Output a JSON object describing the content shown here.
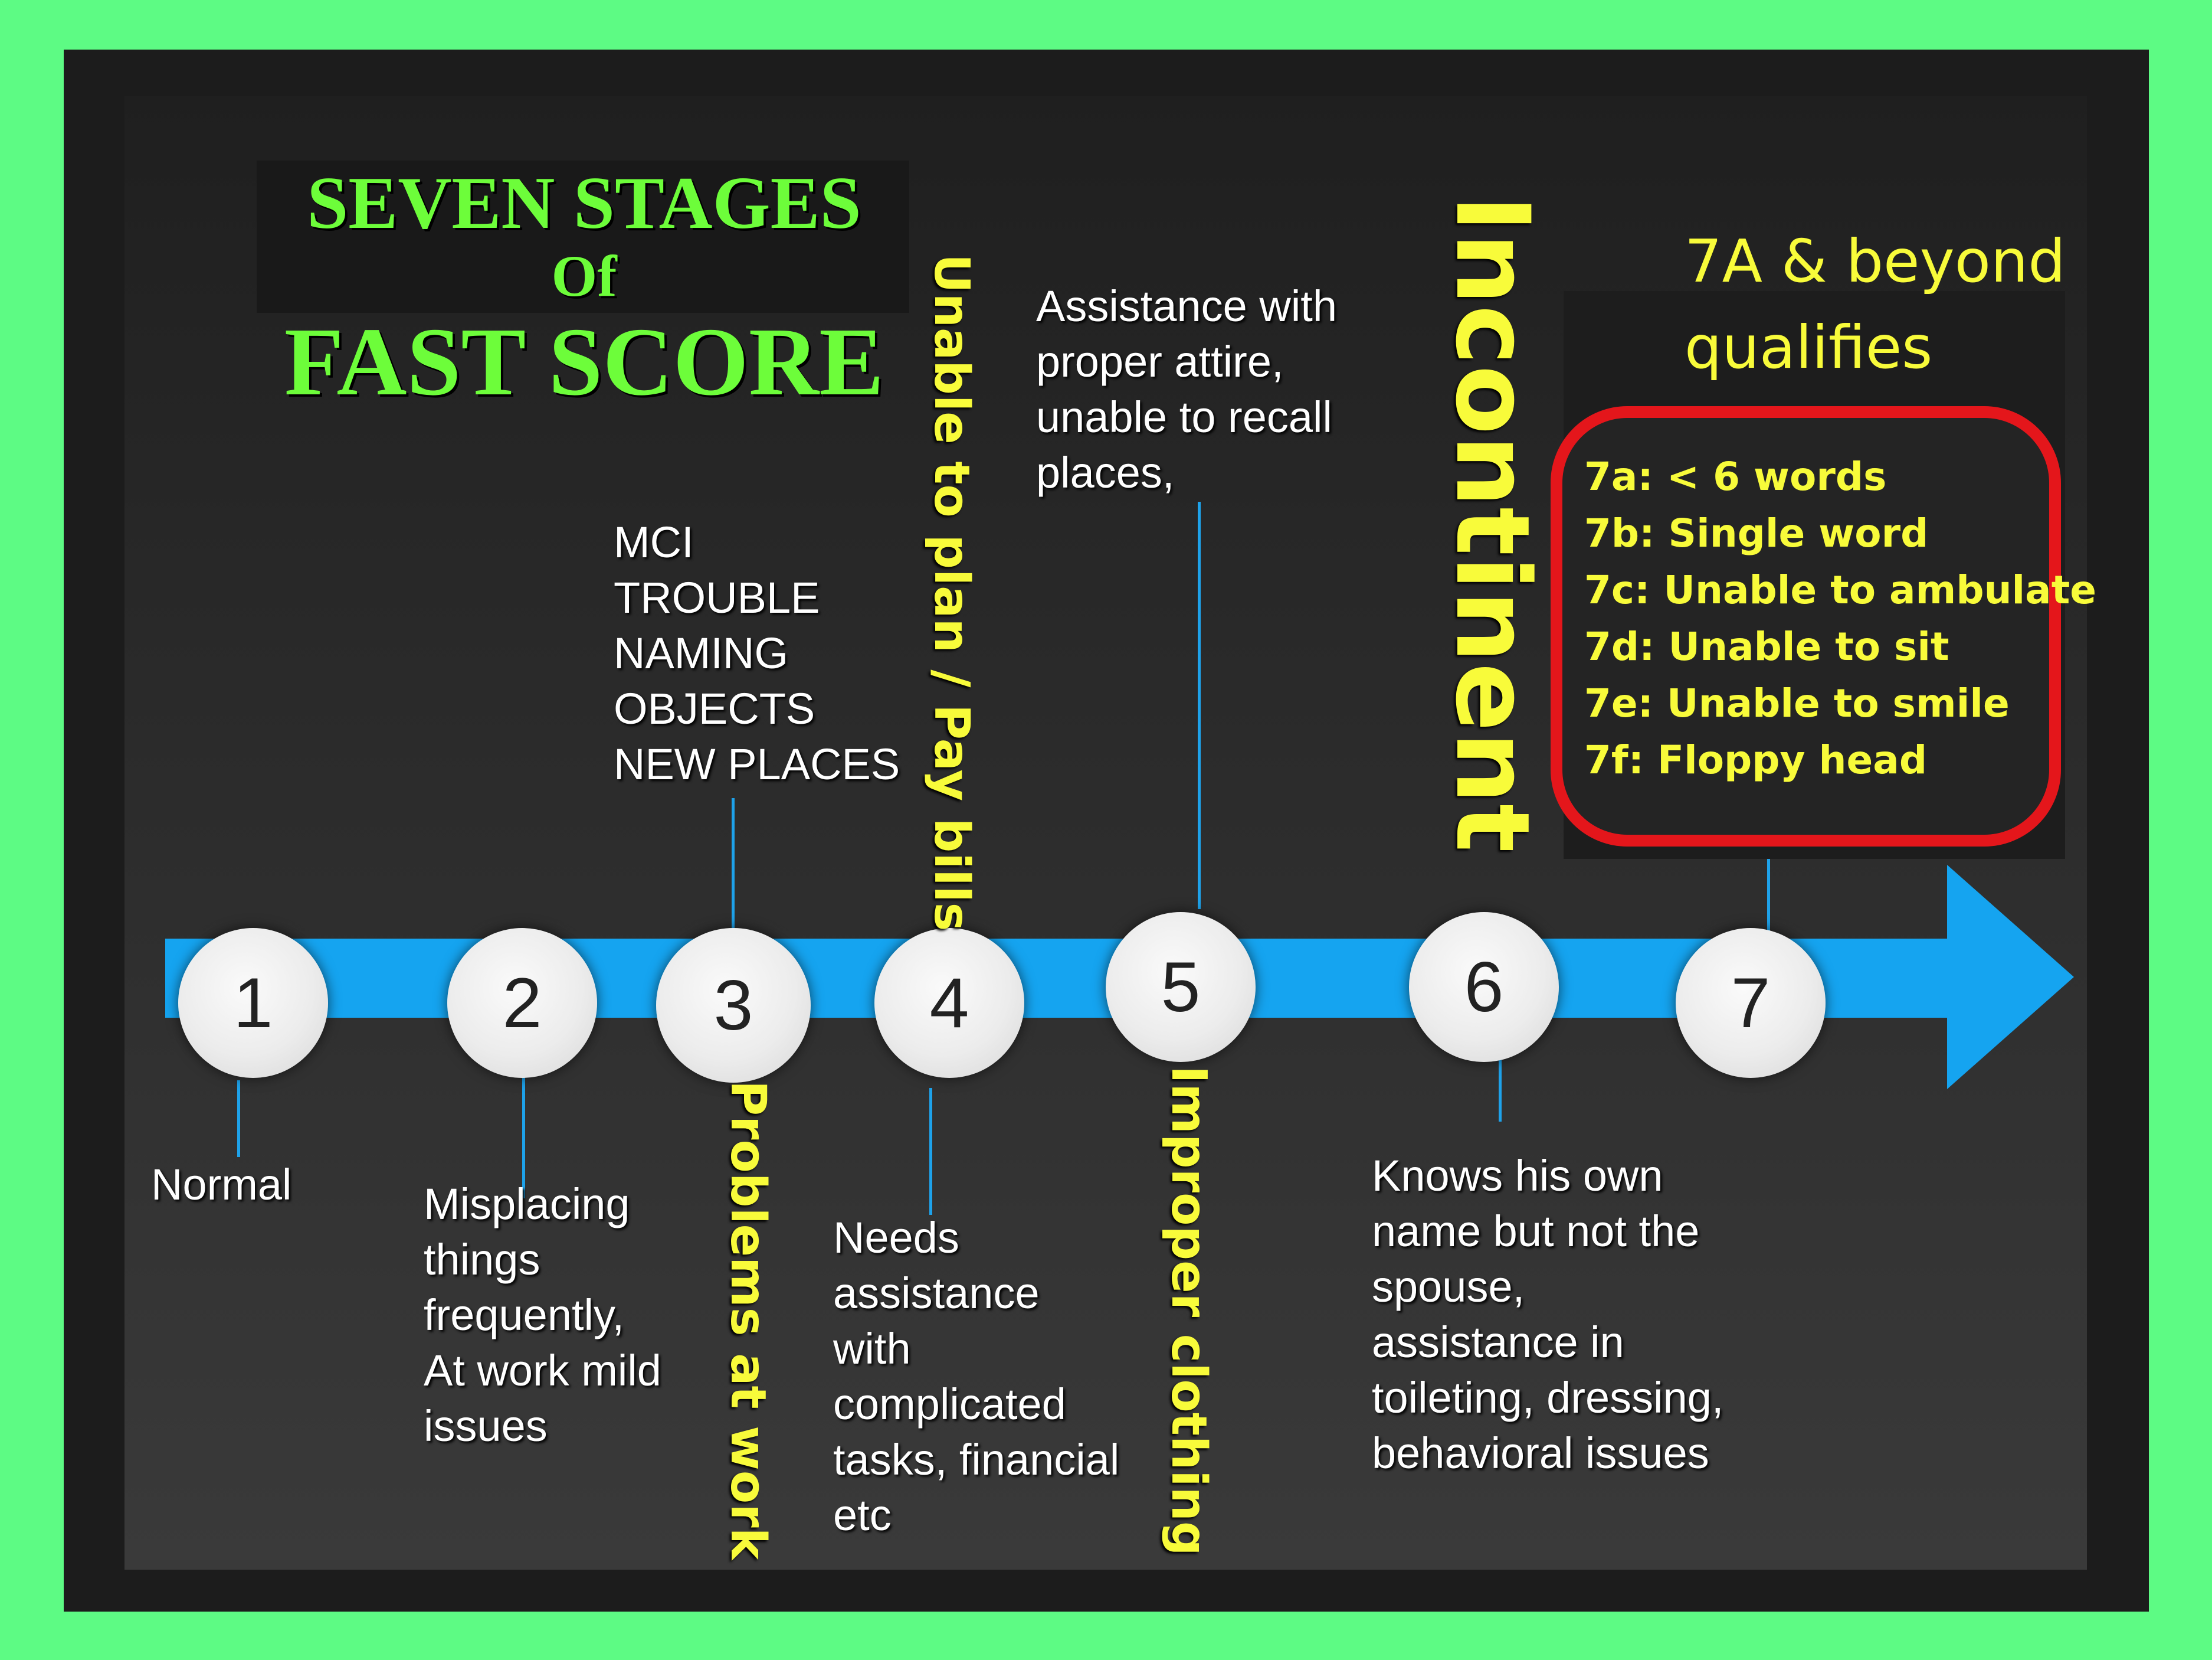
{
  "title": {
    "line1": "SEVEN STAGES",
    "line2": "Of",
    "line3": "FAST SCORE"
  },
  "stages": [
    {
      "number": "1",
      "below": [
        "Normal"
      ]
    },
    {
      "number": "2",
      "below": [
        "Misplacing",
        "things",
        "frequently,",
        "At work mild",
        "issues"
      ]
    },
    {
      "number": "3",
      "above": [
        "MCI",
        "TROUBLE",
        "NAMING",
        "OBJECTS",
        "NEW PLACES"
      ],
      "rotated": "Problems at work"
    },
    {
      "number": "4",
      "below": [
        "Needs",
        "assistance",
        "with",
        "complicated",
        "tasks, financial",
        "etc"
      ],
      "rotated": "Unable to plan /  Pay bills"
    },
    {
      "number": "5",
      "above": [
        "Assistance with",
        "proper attire,",
        "unable to recall",
        "places,"
      ],
      "rotated": "Improper clothing"
    },
    {
      "number": "6",
      "below": [
        "Knows his own",
        "name but not  the",
        "spouse,",
        "assistance in",
        "toileting, dressing,",
        "behavioral issues"
      ],
      "rotated": "Incontinent"
    },
    {
      "number": "7"
    }
  ],
  "stage7": {
    "header": [
      "7A & beyond",
      "qualifies"
    ],
    "items": [
      "7a: < 6 words",
      "7b: Single word",
      "7c: Unable to ambulate",
      "7d: Unable to sit",
      "7e: Unable to smile",
      "7f: Floppy head"
    ]
  },
  "colors": {
    "background": "#5dfb84",
    "panel": "#262626",
    "title": "#6dfd3a",
    "arrow": "#15a4f0",
    "highlight_text": "#f8fb3a",
    "box_border": "#e4161b"
  }
}
